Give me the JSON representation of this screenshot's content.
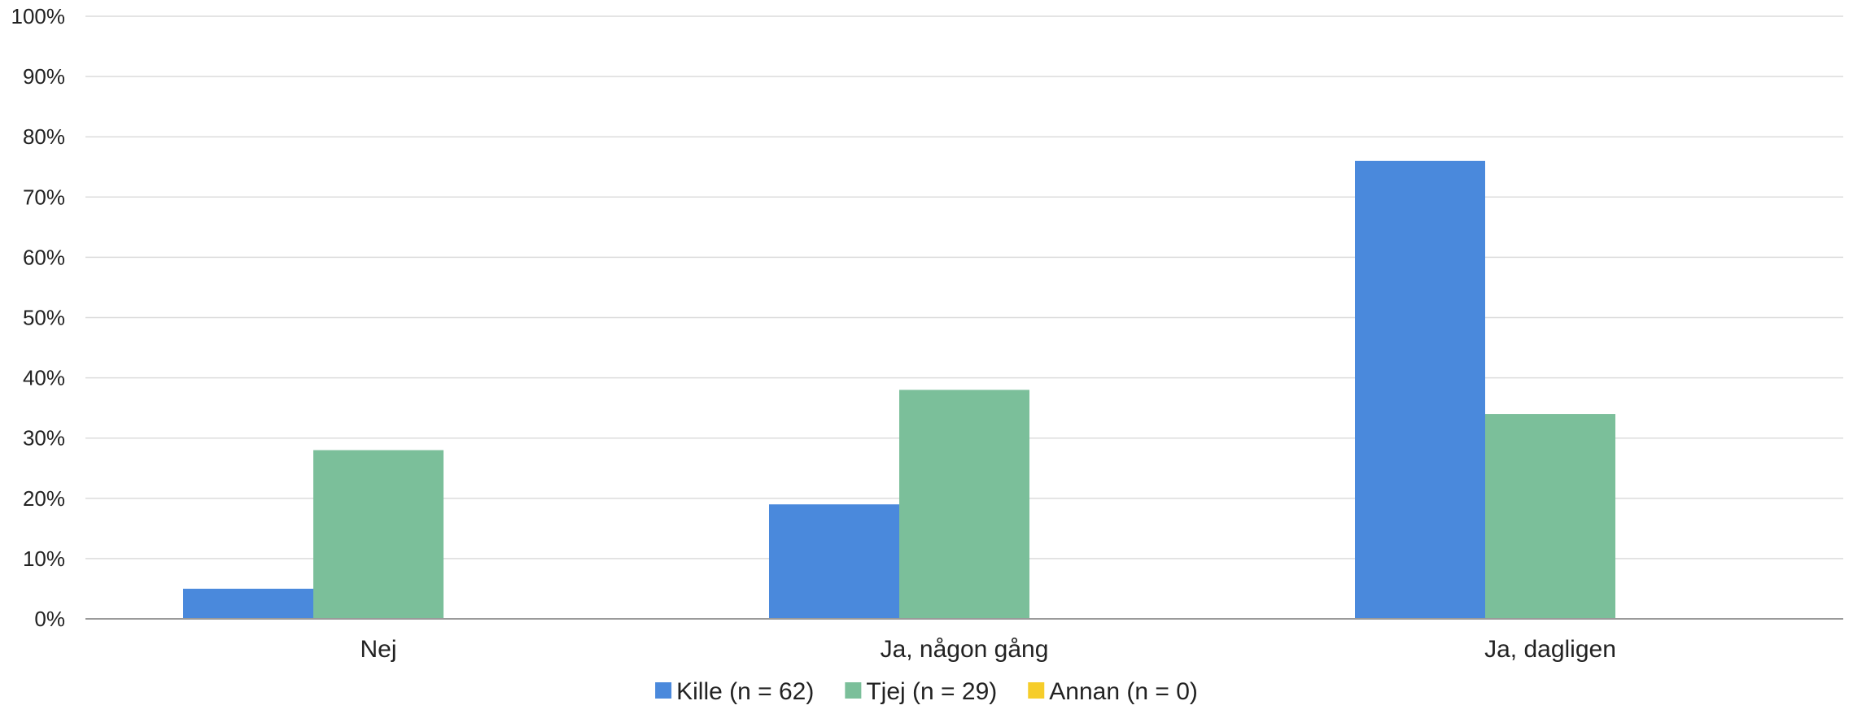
{
  "chart_data": {
    "type": "bar",
    "title": "",
    "xlabel": "",
    "ylabel": "",
    "categories": [
      "Nej",
      "Ja, någon gång",
      "Ja, dagligen"
    ],
    "series": [
      {
        "name": "Kille (n = 62)",
        "color": "#4a89dc",
        "values": [
          5,
          19,
          76
        ]
      },
      {
        "name": "Tjej (n = 29)",
        "color": "#7bbf9a",
        "values": [
          28,
          38,
          34
        ]
      },
      {
        "name": "Annan (n = 0)",
        "color": "#f6cd2a",
        "values": [
          0,
          0,
          0
        ]
      }
    ],
    "ylim": [
      0,
      100
    ],
    "yticks": [
      0,
      10,
      20,
      30,
      40,
      50,
      60,
      70,
      80,
      90,
      100
    ],
    "ytick_labels": [
      "0%",
      "10%",
      "20%",
      "30%",
      "40%",
      "50%",
      "60%",
      "70%",
      "80%",
      "90%",
      "100%"
    ],
    "grid": true,
    "legend_position": "bottom-center"
  }
}
